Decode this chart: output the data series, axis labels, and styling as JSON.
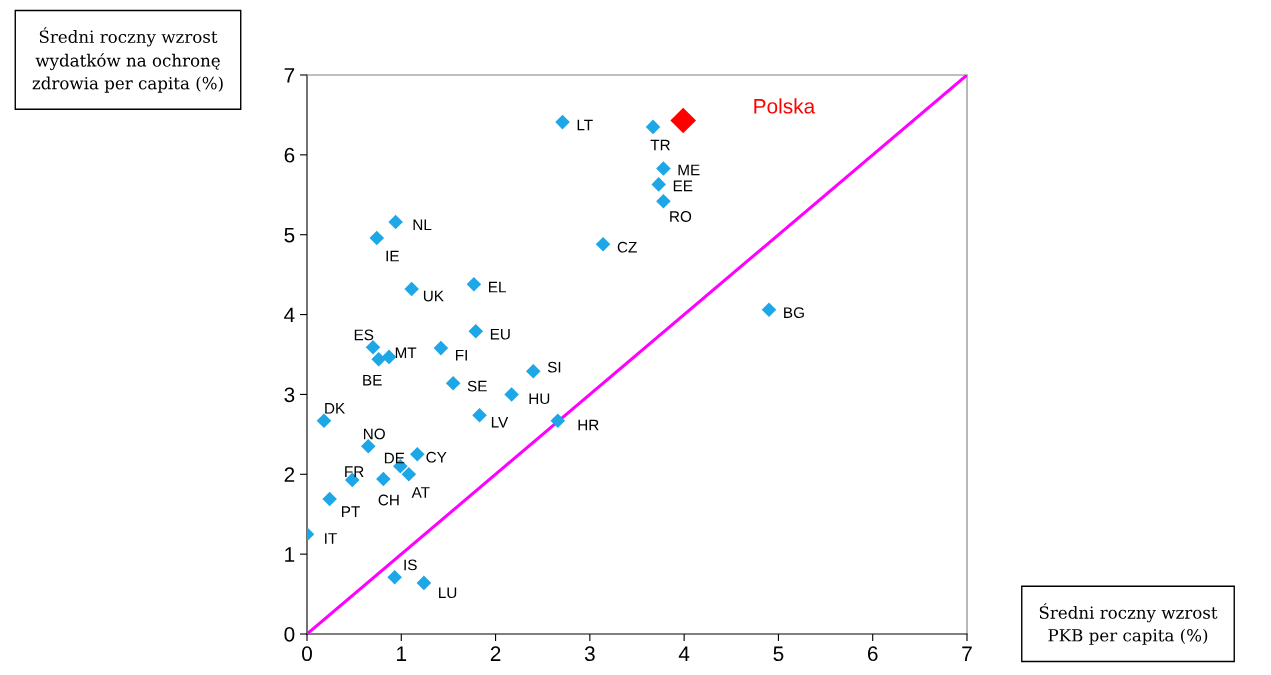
{
  "chart_data": {
    "type": "scatter",
    "xlabel": "Średni roczny wzrost\nPKB per capita (%)",
    "ylabel": "Średni roczny wzrost\nwydatków na ochronę\nzdrowia per capita (%)",
    "xlim": [
      0,
      7
    ],
    "ylim": [
      0,
      7
    ],
    "xticks": [
      0,
      1,
      2,
      3,
      4,
      5,
      6,
      7
    ],
    "yticks": [
      0,
      1,
      2,
      3,
      4,
      5,
      6,
      7
    ],
    "grid": false,
    "legend": false,
    "marker": "diamond",
    "series": [
      {
        "color": "#1ea7e6",
        "x": [
          2.71,
          3.67,
          3.78,
          3.73,
          3.78,
          3.14,
          0.94,
          0.74,
          1.11,
          1.77,
          4.9,
          1.79,
          0.7,
          0.87,
          0.76,
          1.42,
          2.4,
          1.55,
          2.17,
          0.18,
          1.83,
          2.66,
          0.65,
          1.17,
          0.99,
          1.08,
          0.48,
          0.81,
          0.24,
          0.0,
          0.93,
          1.24
        ],
        "values": [
          6.41,
          6.35,
          5.83,
          5.63,
          5.42,
          4.88,
          5.16,
          4.96,
          4.32,
          4.38,
          4.06,
          3.79,
          3.59,
          3.47,
          3.44,
          3.58,
          3.29,
          3.14,
          3.0,
          2.67,
          2.74,
          2.67,
          2.35,
          2.25,
          2.1,
          2.0,
          1.93,
          1.94,
          1.69,
          1.25,
          0.71,
          0.64
        ]
      },
      {
        "name": "Polska",
        "color": "#ff0000",
        "x": [
          3.99
        ],
        "values": [
          6.43
        ]
      },
      {
        "type": "line",
        "marker": "none",
        "color": "#ff00ff",
        "x": [
          0,
          7
        ],
        "values": [
          0,
          7
        ]
      }
    ],
    "annotations": [
      {
        "text": "LT",
        "x": 2.71,
        "y": 6.41
      },
      {
        "text": "TR",
        "x": 3.67,
        "y": 6.35
      },
      {
        "text": "ME",
        "x": 3.78,
        "y": 5.83
      },
      {
        "text": "EE",
        "x": 3.73,
        "y": 5.63
      },
      {
        "text": "RO",
        "x": 3.78,
        "y": 5.42
      },
      {
        "text": "CZ",
        "x": 3.14,
        "y": 4.88
      },
      {
        "text": "NL",
        "x": 0.94,
        "y": 5.16
      },
      {
        "text": "IE",
        "x": 0.74,
        "y": 4.96
      },
      {
        "text": "UK",
        "x": 1.11,
        "y": 4.32
      },
      {
        "text": "EL",
        "x": 1.77,
        "y": 4.38
      },
      {
        "text": "BG",
        "x": 4.9,
        "y": 4.06
      },
      {
        "text": "EU",
        "x": 1.79,
        "y": 3.79
      },
      {
        "text": "ES",
        "x": 0.7,
        "y": 3.59
      },
      {
        "text": "MT",
        "x": 0.87,
        "y": 3.47
      },
      {
        "text": "BE",
        "x": 0.76,
        "y": 3.44
      },
      {
        "text": "FI",
        "x": 1.42,
        "y": 3.58
      },
      {
        "text": "SI",
        "x": 2.4,
        "y": 3.29
      },
      {
        "text": "SE",
        "x": 1.55,
        "y": 3.14
      },
      {
        "text": "HU",
        "x": 2.17,
        "y": 3.0
      },
      {
        "text": "DK",
        "x": 0.18,
        "y": 2.67
      },
      {
        "text": "LV",
        "x": 1.83,
        "y": 2.74
      },
      {
        "text": "HR",
        "x": 2.66,
        "y": 2.67
      },
      {
        "text": "NO",
        "x": 0.65,
        "y": 2.35
      },
      {
        "text": "CY",
        "x": 1.17,
        "y": 2.25
      },
      {
        "text": "DE",
        "x": 0.99,
        "y": 2.1
      },
      {
        "text": "AT",
        "x": 1.08,
        "y": 2.0
      },
      {
        "text": "FR",
        "x": 0.48,
        "y": 1.93
      },
      {
        "text": "CH",
        "x": 0.81,
        "y": 1.94
      },
      {
        "text": "PT",
        "x": 0.24,
        "y": 1.69
      },
      {
        "text": "IT",
        "x": 0.0,
        "y": 1.25
      },
      {
        "text": "IS",
        "x": 0.93,
        "y": 0.71
      },
      {
        "text": "LU",
        "x": 1.24,
        "y": 0.64
      }
    ]
  }
}
